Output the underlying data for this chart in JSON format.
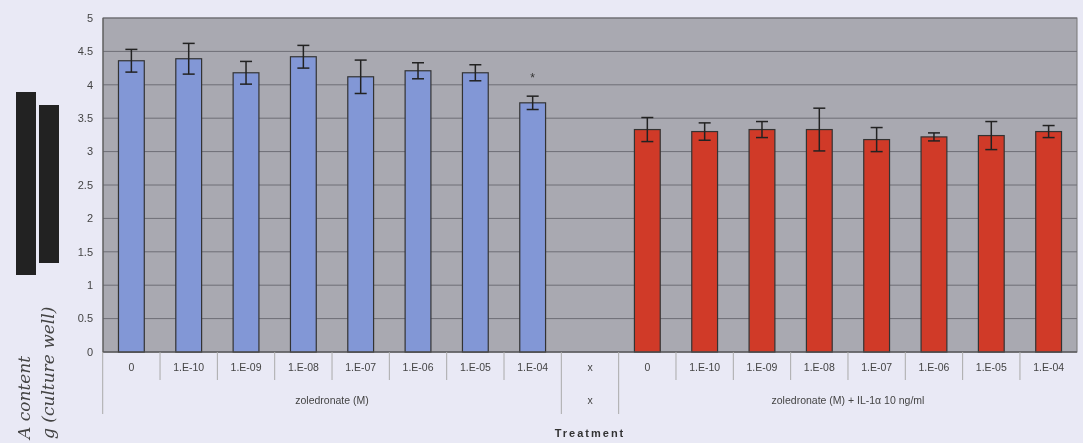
{
  "chart_data": {
    "type": "bar",
    "xlabel": "Treatment",
    "ylabel": "A content\ng (culture well)",
    "categories": [
      "0",
      "1.E-10",
      "1.E-09",
      "1.E-08",
      "1.E-07",
      "1.E-06",
      "1.E-05",
      "1.E-04",
      "x",
      "0",
      "1.E-10",
      "1.E-09",
      "1.E-08",
      "1.E-07",
      "1.E-06",
      "1.E-05",
      "1.E-04"
    ],
    "values": [
      4.36,
      4.39,
      4.18,
      4.42,
      4.12,
      4.21,
      4.18,
      3.73,
      null,
      3.33,
      3.3,
      3.33,
      3.33,
      3.18,
      3.22,
      3.24,
      3.3
    ],
    "errors": [
      0.17,
      0.23,
      0.17,
      0.17,
      0.25,
      0.12,
      0.12,
      0.1,
      null,
      0.18,
      0.13,
      0.12,
      0.32,
      0.18,
      0.06,
      0.21,
      0.09
    ],
    "colors": [
      "#8297d6",
      "#8297d6",
      "#8297d6",
      "#8297d6",
      "#8297d6",
      "#8297d6",
      "#8297d6",
      "#8297d6",
      null,
      "#d03a28",
      "#d03a28",
      "#d03a28",
      "#d03a28",
      "#d03a28",
      "#d03a28",
      "#d03a28",
      "#d03a28"
    ],
    "ylim": [
      0,
      5
    ],
    "yticks": [
      0,
      0.5,
      1,
      1.5,
      2,
      2.5,
      3,
      3.5,
      4,
      4.5,
      5
    ],
    "grid": "y",
    "annotations": [
      "*",
      "zoledronate (M)",
      "x",
      "zoledronate (M) + IL-1α 10 ng/ml"
    ]
  }
}
